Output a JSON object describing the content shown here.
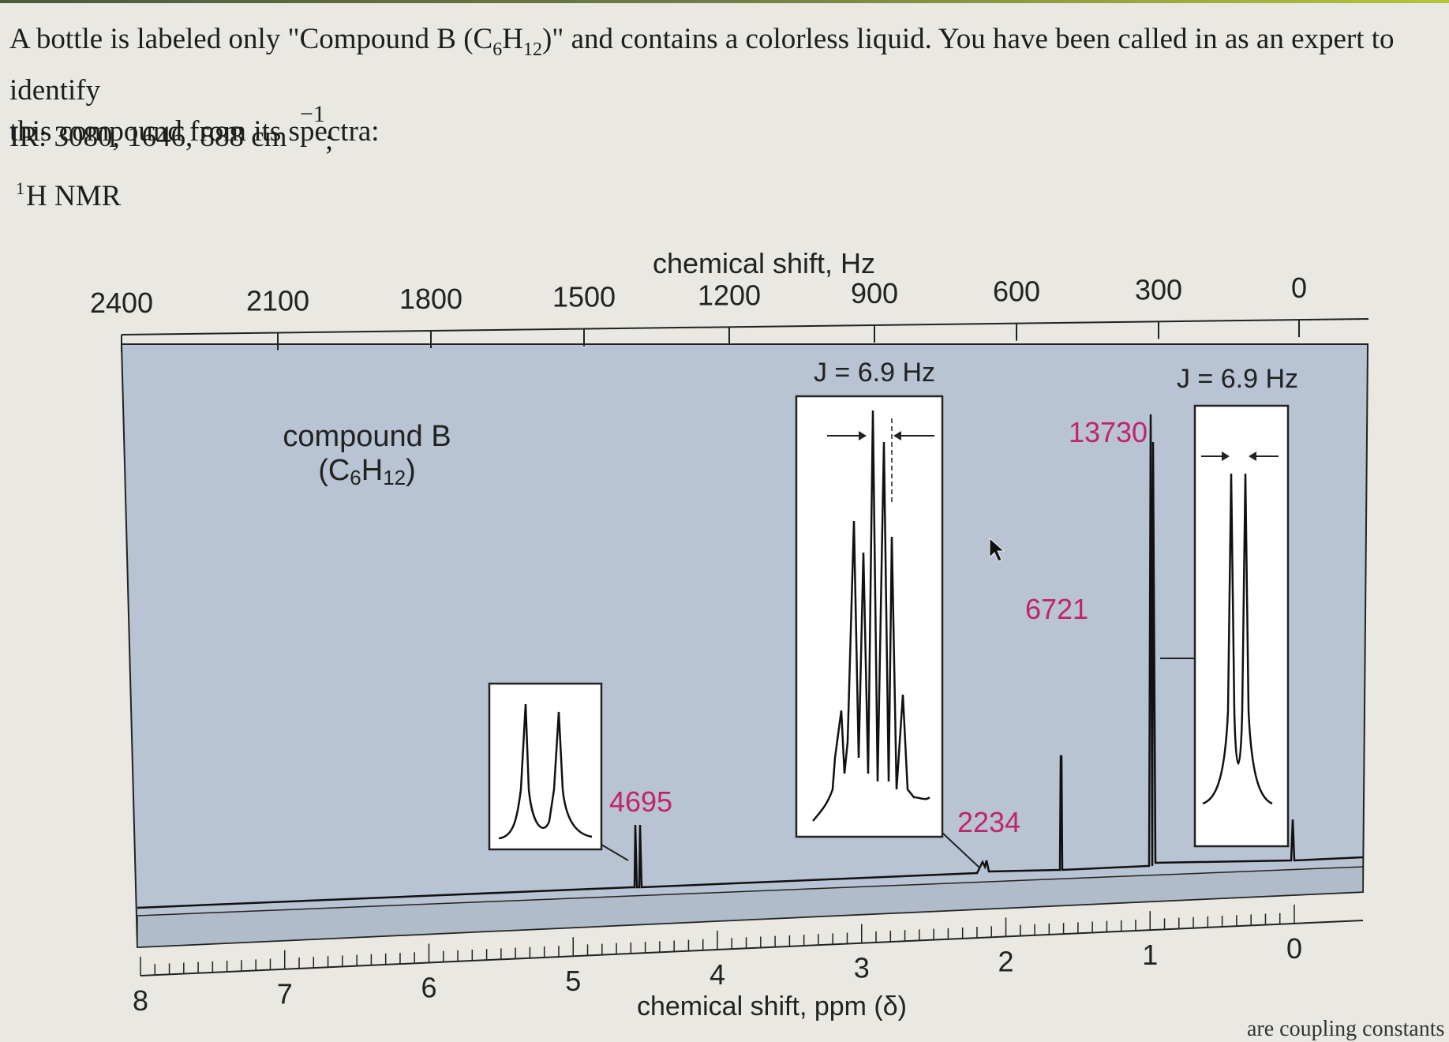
{
  "problem": {
    "intro_before": "A bottle is labeled only \"Compound B (C",
    "intro_sub1": "6",
    "intro_mid": "H",
    "intro_sub2": "12",
    "intro_after": ")\" and contains a colorless liquid. You have been called in as an expert to identify",
    "line2": "this compound from its spectra:",
    "ir_text": "IR: 3080, 1646, 888 cm",
    "ir_superscript": "−1",
    "ir_semicolon": ";",
    "nmr_sup": "1",
    "nmr_label": "H NMR",
    "bottom_note": "are coupling constants"
  },
  "spectrum": {
    "top_axis_title": "chemical shift, Hz",
    "top_ticks": [
      "2400",
      "2100",
      "1800",
      "1500",
      "1200",
      "900",
      "600",
      "300",
      "0"
    ],
    "bottom_axis_title": "chemical shift, ppm (δ)",
    "bottom_ticks": [
      "8",
      "7",
      "6",
      "5",
      "4",
      "3",
      "2",
      "1",
      "0"
    ],
    "compound_label": "compound B",
    "compound_formula_main": "(C",
    "compound_formula_sub1": "6",
    "compound_formula_mid": "H",
    "compound_formula_sub2": "12",
    "compound_formula_end": ")",
    "integrals": [
      "4695",
      "2234",
      "6721",
      "13730"
    ],
    "coupling_labels": [
      "J = 6.9 Hz",
      "J = 6.9 Hz"
    ],
    "colors": {
      "plot_background": "#b8c3d3",
      "integral_text": "#c0246e",
      "trace": "#111111"
    }
  },
  "chart_data": {
    "type": "line",
    "title": "",
    "xlabel": "chemical shift, ppm (δ)",
    "x2label": "chemical shift, Hz",
    "xlim": [
      8,
      0
    ],
    "x2lim": [
      2400,
      0
    ],
    "peaks": [
      {
        "shift_ppm": 4.7,
        "multiplicity": "two lines",
        "integral": 4695
      },
      {
        "shift_ppm": 2.2,
        "multiplicity": "multiplet",
        "integral": 2234,
        "J_Hz": 6.9
      },
      {
        "shift_ppm": 1.7,
        "multiplicity": "singlet",
        "integral": 6721
      },
      {
        "shift_ppm": 1.0,
        "multiplicity": "doublet",
        "integral": 13730,
        "J_Hz": 6.9
      },
      {
        "shift_ppm": 0.0,
        "multiplicity": "singlet",
        "integral": null
      }
    ]
  }
}
